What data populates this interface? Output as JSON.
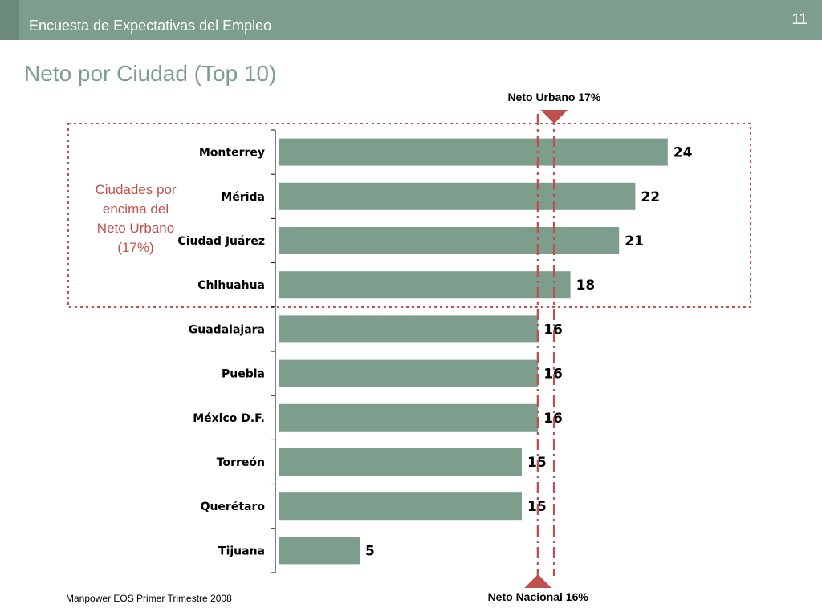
{
  "header": {
    "title": "Encuesta de Expectativas del Empleo",
    "slide_number": "11"
  },
  "slide": {
    "title": "Neto por Ciudad (Top 10)"
  },
  "footer": {
    "source": "Manpower EOS Primer Trimestre 2008"
  },
  "annotation": {
    "lines": [
      "Ciudades  por",
      "encima del",
      "Neto Urbano",
      "(17%)"
    ]
  },
  "colors": {
    "bar": "#7d9e8c",
    "reference": "#c0504d",
    "header": "#7d9e8c"
  },
  "chart_data": {
    "type": "bar",
    "orientation": "horizontal",
    "categories": [
      "Monterrey",
      "Mérida",
      "Ciudad Juárez",
      "Chihuahua",
      "Guadalajara",
      "Puebla",
      "México D.F.",
      "Torreón",
      "Querétaro",
      "Tijuana"
    ],
    "values": [
      24,
      22,
      21,
      18,
      16,
      16,
      16,
      15,
      15,
      5
    ],
    "xlim": [
      0,
      24
    ],
    "reference_lines": [
      {
        "label": "Neto Urbano 17%",
        "value": 17,
        "marker": "top"
      },
      {
        "label": "Neto Nacional 16%",
        "value": 16,
        "marker": "bottom"
      }
    ],
    "highlight_group": {
      "label": "Ciudades  por encima del Neto Urbano (17%)",
      "categories": [
        "Monterrey",
        "Mérida",
        "Ciudad Juárez",
        "Chihuahua"
      ]
    },
    "title": "Neto por Ciudad (Top 10)",
    "xlabel": "",
    "ylabel": ""
  }
}
